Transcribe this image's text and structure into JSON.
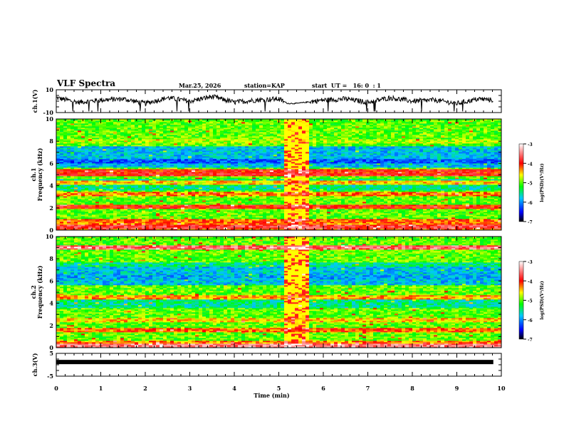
{
  "header": {
    "title": "VLF Spectra",
    "date": "Mar.25, 2026",
    "station": "station=KAP",
    "start_time": "start  UT =   16: 0  : 1"
  },
  "colors": {
    "trace": "#000000",
    "background": "#ffffff",
    "colorbar_stops": [
      "#000000",
      "#0000ff",
      "#00ffff",
      "#00ff00",
      "#ffff00",
      "#ff0000",
      "#ffffff"
    ]
  },
  "chart_data": [
    {
      "type": "line",
      "name": "ch1-waveform",
      "ylabel": "ch.1(V)",
      "ylim": [
        -10,
        10
      ],
      "ytick_labels": [
        "10",
        "-10"
      ],
      "xlim": [
        0,
        10
      ],
      "description": "noisy waveform around ~2 V, flat/quiet segment near 5.1-5.7 min",
      "x": [
        0,
        0.5,
        1,
        1.5,
        2,
        2.5,
        3,
        3.5,
        4,
        4.5,
        5,
        5.2,
        5.4,
        5.6,
        6,
        6.5,
        7,
        7.5,
        8,
        8.5,
        9,
        9.5,
        9.8
      ],
      "y": [
        3,
        -1,
        1,
        2,
        -2,
        3,
        0,
        4,
        -1,
        1,
        2,
        -2,
        -2,
        -1,
        1,
        2,
        -1,
        3,
        0,
        1,
        -2,
        2,
        1
      ]
    },
    {
      "type": "heatmap",
      "name": "ch1-spectrogram",
      "ylabel": "ch.1\nFrequency (kHz)",
      "xlim": [
        0,
        10
      ],
      "ylim": [
        0,
        10
      ],
      "ytick_labels": [
        "0",
        "2",
        "4",
        "6",
        "8",
        "10"
      ],
      "colorbar": {
        "label": "log(PSD)(V²/Hz)",
        "range": [
          -7,
          -3
        ],
        "tick_labels": [
          "-3",
          "-4",
          "-5",
          "-6",
          "-7"
        ]
      },
      "bands_khz": [
        {
          "f": 0.3,
          "level": -3.8
        },
        {
          "f": 0.8,
          "level": -4.2
        },
        {
          "f": 2.1,
          "level": -4.0
        },
        {
          "f": 3.3,
          "level": -4.3
        },
        {
          "f": 4.3,
          "level": -4.5
        },
        {
          "f": 5.1,
          "level": -3.9
        },
        {
          "f": 5.3,
          "level": -4.0
        },
        {
          "f": 6.2,
          "level": -6.2
        },
        {
          "f": 7.2,
          "level": -5.8
        },
        {
          "f": 8.0,
          "level": -4.8
        }
      ],
      "event": {
        "t_start": 5.1,
        "t_end": 5.7,
        "description": "enhanced broadband emission"
      }
    },
    {
      "type": "heatmap",
      "name": "ch2-spectrogram",
      "ylabel": "ch.2\nFrequency (kHz)",
      "xlim": [
        0,
        10
      ],
      "ylim": [
        0,
        10
      ],
      "ytick_labels": [
        "0",
        "2",
        "4",
        "6",
        "8",
        "10"
      ],
      "colorbar": {
        "label": "log(PSD)(V²/Hz)",
        "range": [
          -7,
          -3
        ],
        "tick_labels": [
          "-3",
          "-4",
          "-5",
          "-6",
          "-7"
        ]
      },
      "bands_khz": [
        {
          "f": 0.2,
          "level": -3.5
        },
        {
          "f": 1.6,
          "level": -4.2
        },
        {
          "f": 2.5,
          "level": -4.5
        },
        {
          "f": 4.6,
          "level": -4.4
        },
        {
          "f": 6.3,
          "level": -5.9
        },
        {
          "f": 7.5,
          "level": -5.5
        },
        {
          "f": 9.0,
          "level": -3.6
        }
      ],
      "event": {
        "t_start": 5.1,
        "t_end": 5.7,
        "description": "enhanced broadband emission"
      }
    },
    {
      "type": "line",
      "name": "ch3-waveform",
      "ylabel": "ch.3(V)",
      "ylim": [
        -5,
        5
      ],
      "ytick_labels": [
        "5",
        "-5"
      ],
      "xlim": [
        0,
        10
      ],
      "xlabel": "Time  (min)",
      "xtick_labels": [
        "0",
        "1",
        "2",
        "3",
        "4",
        "5",
        "6",
        "7",
        "8",
        "9",
        "10"
      ],
      "x": [
        0,
        9.82
      ],
      "y": [
        1.2,
        1.2
      ]
    }
  ]
}
